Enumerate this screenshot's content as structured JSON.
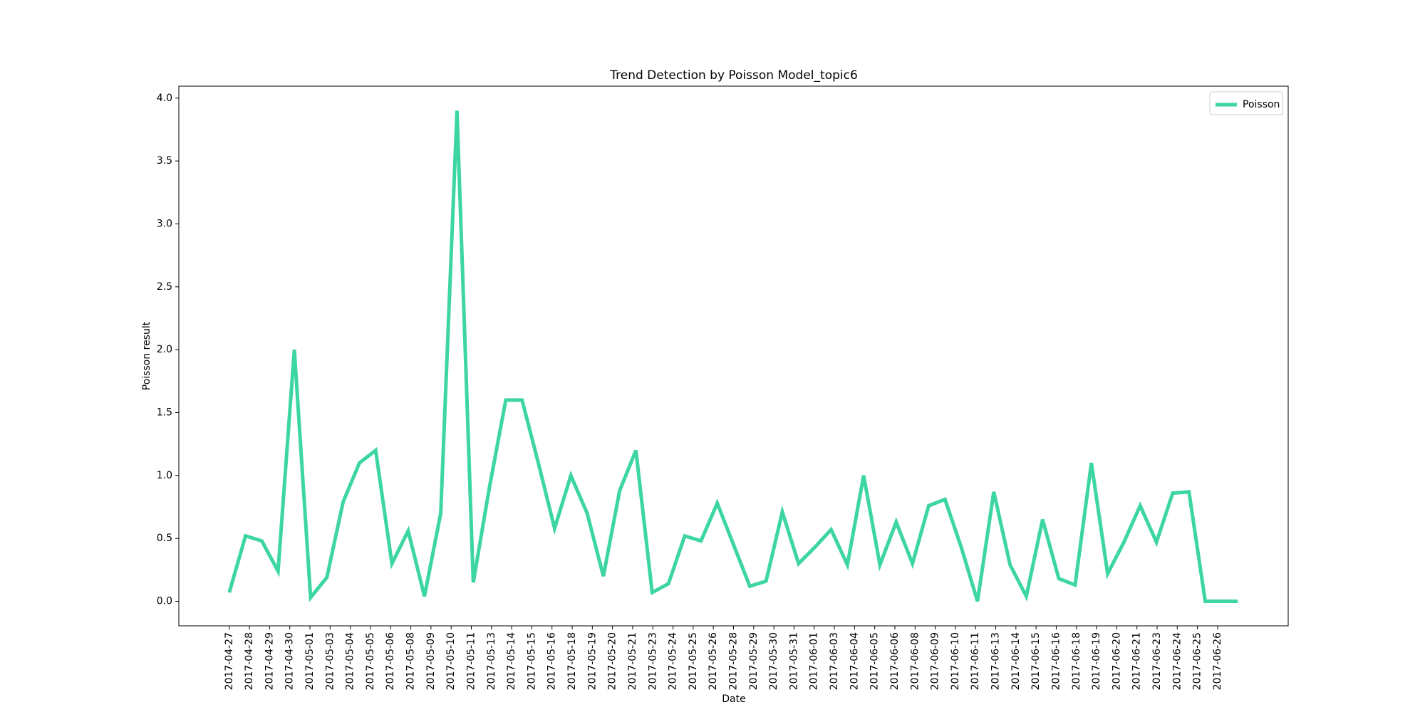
{
  "chart_data": {
    "type": "line",
    "title": "Trend Detection by Poisson Model_topic6",
    "xlabel": "Date",
    "ylabel": "Poisson result",
    "x": [
      0,
      1,
      2,
      3,
      4,
      5,
      6,
      7,
      8,
      9,
      10,
      11,
      12,
      13,
      14,
      15,
      16,
      17,
      18,
      19,
      20,
      21,
      22,
      23,
      24,
      25,
      26,
      27,
      28,
      29,
      30,
      31,
      32,
      33,
      34,
      35,
      36,
      37,
      38,
      39,
      40,
      41,
      42,
      43,
      44,
      45,
      46,
      47,
      48,
      49,
      50,
      51,
      52,
      53,
      54,
      55,
      56,
      57,
      58,
      59,
      60,
      61,
      62
    ],
    "series": [
      {
        "name": "Poisson",
        "color": "#3dd6a3",
        "values": [
          0.07,
          0.52,
          0.48,
          0.24,
          2.0,
          0.03,
          0.19,
          0.79,
          1.1,
          1.2,
          0.3,
          0.56,
          0.04,
          0.7,
          3.9,
          0.15,
          0.91,
          1.6,
          1.6,
          1.1,
          0.58,
          1.0,
          0.7,
          0.2,
          0.88,
          1.2,
          0.07,
          0.14,
          0.52,
          0.48,
          0.78,
          0.45,
          0.12,
          0.16,
          0.71,
          0.3,
          0.43,
          0.57,
          0.29,
          1.0,
          0.29,
          0.63,
          0.3,
          0.76,
          0.81,
          0.43,
          0.0,
          0.87,
          0.29,
          0.04,
          0.65,
          0.18,
          0.13,
          1.1,
          0.22,
          0.47,
          0.76,
          0.47,
          0.86,
          0.87,
          0.0,
          0.0,
          0.0
        ]
      }
    ],
    "xlim": [
      -3.1,
      65.1
    ],
    "xticks": [
      {
        "value": 0,
        "label": "2017-04-27"
      },
      {
        "value": 1.24,
        "label": "2017-04-28"
      },
      {
        "value": 2.48,
        "label": "2017-04-29"
      },
      {
        "value": 3.72,
        "label": "2017-04-30"
      },
      {
        "value": 4.96,
        "label": "2017-05-01"
      },
      {
        "value": 6.2,
        "label": "2017-05-03"
      },
      {
        "value": 7.44,
        "label": "2017-05-04"
      },
      {
        "value": 8.68,
        "label": "2017-05-05"
      },
      {
        "value": 9.92,
        "label": "2017-05-06"
      },
      {
        "value": 11.16,
        "label": "2017-05-08"
      },
      {
        "value": 12.4,
        "label": "2017-05-09"
      },
      {
        "value": 13.64,
        "label": "2017-05-10"
      },
      {
        "value": 14.88,
        "label": "2017-05-11"
      },
      {
        "value": 16.12,
        "label": "2017-05-13"
      },
      {
        "value": 17.36,
        "label": "2017-05-14"
      },
      {
        "value": 18.6,
        "label": "2017-05-15"
      },
      {
        "value": 19.84,
        "label": "2017-05-16"
      },
      {
        "value": 21.08,
        "label": "2017-05-18"
      },
      {
        "value": 22.32,
        "label": "2017-05-19"
      },
      {
        "value": 23.56,
        "label": "2017-05-20"
      },
      {
        "value": 24.8,
        "label": "2017-05-21"
      },
      {
        "value": 26.04,
        "label": "2017-05-23"
      },
      {
        "value": 27.28,
        "label": "2017-05-24"
      },
      {
        "value": 28.52,
        "label": "2017-05-25"
      },
      {
        "value": 29.76,
        "label": "2017-05-26"
      },
      {
        "value": 31,
        "label": "2017-05-28"
      },
      {
        "value": 32.24,
        "label": "2017-05-29"
      },
      {
        "value": 33.48,
        "label": "2017-05-30"
      },
      {
        "value": 34.72,
        "label": "2017-05-31"
      },
      {
        "value": 35.96,
        "label": "2017-06-01"
      },
      {
        "value": 37.2,
        "label": "2017-06-03"
      },
      {
        "value": 38.44,
        "label": "2017-06-04"
      },
      {
        "value": 39.68,
        "label": "2017-06-05"
      },
      {
        "value": 40.92,
        "label": "2017-06-06"
      },
      {
        "value": 42.16,
        "label": "2017-06-08"
      },
      {
        "value": 43.4,
        "label": "2017-06-09"
      },
      {
        "value": 44.64,
        "label": "2017-06-10"
      },
      {
        "value": 45.88,
        "label": "2017-06-11"
      },
      {
        "value": 47.12,
        "label": "2017-06-13"
      },
      {
        "value": 48.36,
        "label": "2017-06-14"
      },
      {
        "value": 49.6,
        "label": "2017-06-15"
      },
      {
        "value": 50.84,
        "label": "2017-06-16"
      },
      {
        "value": 52.08,
        "label": "2017-06-18"
      },
      {
        "value": 53.32,
        "label": "2017-06-19"
      },
      {
        "value": 54.56,
        "label": "2017-06-20"
      },
      {
        "value": 55.8,
        "label": "2017-06-21"
      },
      {
        "value": 57.04,
        "label": "2017-06-23"
      },
      {
        "value": 58.28,
        "label": "2017-06-24"
      },
      {
        "value": 59.52,
        "label": "2017-06-25"
      },
      {
        "value": 60.76,
        "label": "2017-06-26"
      }
    ],
    "ylim": [
      -0.195,
      4.095
    ],
    "yticks": [
      {
        "value": 0,
        "label": "0.0"
      },
      {
        "value": 0.5,
        "label": "0.5"
      },
      {
        "value": 1,
        "label": "1.0"
      },
      {
        "value": 1.5,
        "label": "1.5"
      },
      {
        "value": 2,
        "label": "2.0"
      },
      {
        "value": 2.5,
        "label": "2.5"
      },
      {
        "value": 3,
        "label": "3.0"
      },
      {
        "value": 3.5,
        "label": "3.5"
      },
      {
        "value": 4,
        "label": "4.0"
      }
    ],
    "grid": false,
    "legend": "upper right"
  }
}
